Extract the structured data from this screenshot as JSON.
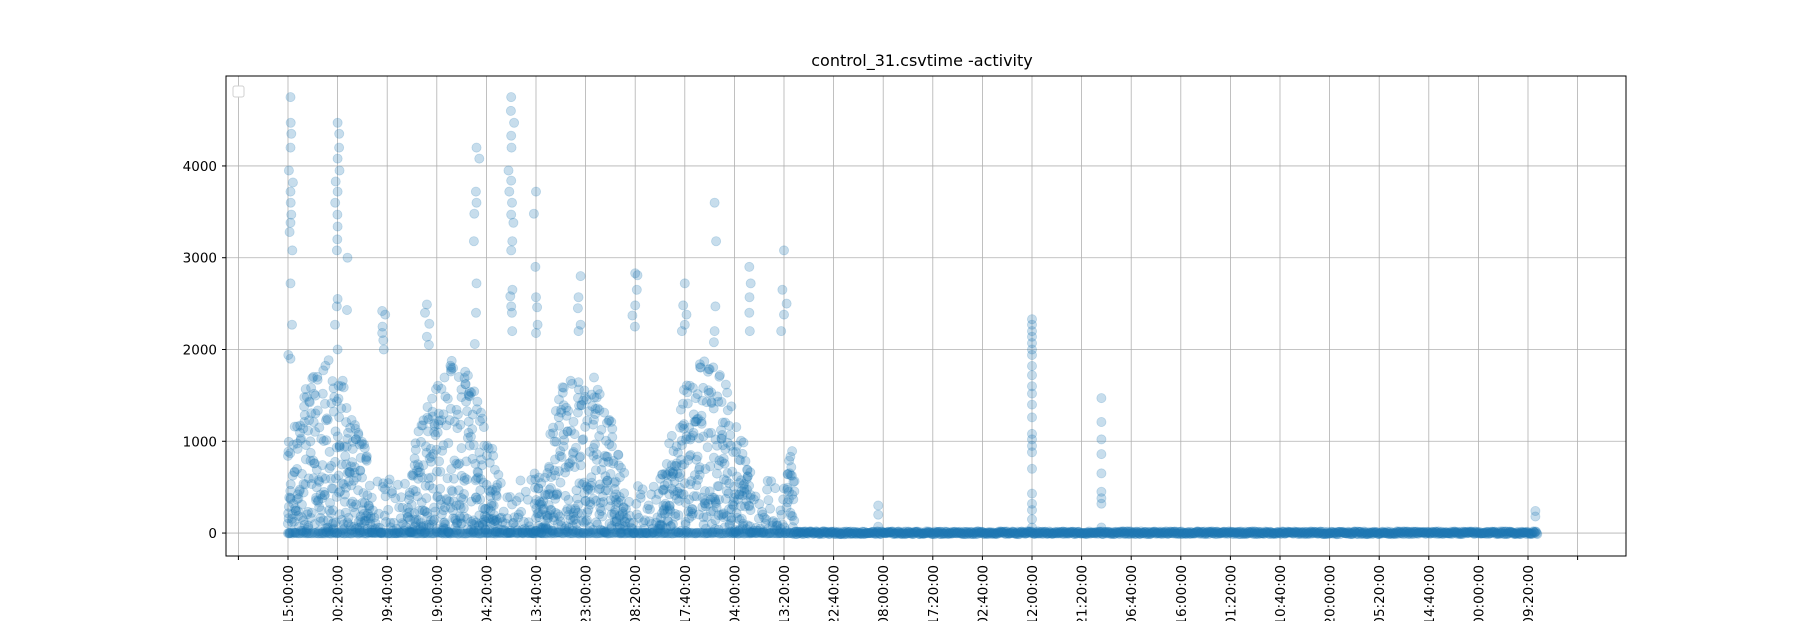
{
  "chart_data": {
    "type": "scatter",
    "title": "control_31.csvtime -activity",
    "xlabel": "",
    "ylabel": "",
    "grid": true,
    "legend": "top-left (empty)",
    "marker_color": "#1f77b4",
    "marker_alpha": 0.25,
    "y_ticks": [
      0,
      1000,
      2000,
      3000,
      4000
    ],
    "ylim": [
      -250,
      4980
    ],
    "x_ticks": [
      "15:00:00",
      "00:20:00",
      "09:40:00",
      "19:00:00",
      "04:20:00",
      "13:40:00",
      "23:00:00",
      "08:20:00",
      "17:40:00",
      "04:00:00",
      "13:20:00",
      "22:40:00",
      "08:00:00",
      "17:20:00",
      "02:40:00",
      "12:00:00",
      "21:20:00",
      "06:40:00",
      "16:00:00",
      "01:20:00",
      "10:40:00",
      "20:00:00",
      "05:20:00",
      "14:40:00",
      "00:00:00",
      "09:20:00"
    ],
    "x_tick_rotation": 90,
    "x_note": "x axis is time with ticks every 9h20m; activity data begins at tick 0 and ends just past tick 25",
    "series": [
      {
        "segments": [
          {
            "from_tick": 0.0,
            "to_tick": 10.2,
            "pattern": "dense daily bursts",
            "typical_max": 1900,
            "bursts": [
              {
                "at_tick": 0.05,
                "peaks": [
                  4750,
                  4470,
                  4350,
                  4200,
                  3950,
                  3820,
                  3720,
                  3600,
                  3470,
                  3380,
                  3280,
                  3080,
                  2720,
                  2270,
                  1940,
                  1900
                ]
              },
              {
                "at_tick": 1.0,
                "peaks": [
                  4470,
                  4350,
                  4200,
                  4080,
                  3950,
                  3830,
                  3720,
                  3600,
                  3470,
                  3340,
                  3200,
                  3080,
                  2550,
                  2470,
                  2270,
                  2000
                ]
              },
              {
                "at_tick": 1.2,
                "peaks": [
                  3000,
                  2430
                ]
              },
              {
                "at_tick": 1.9,
                "peaks": [
                  2420,
                  2380,
                  2250,
                  2180,
                  2100,
                  2000
                ]
              },
              {
                "at_tick": 2.8,
                "peaks": [
                  2490,
                  2400,
                  2280,
                  2140,
                  2050
                ]
              },
              {
                "at_tick": 3.8,
                "peaks": [
                  4200,
                  4080,
                  3720,
                  3600,
                  3480,
                  3180,
                  2720,
                  2400,
                  2060
                ]
              },
              {
                "at_tick": 4.5,
                "peaks": [
                  4750,
                  4600,
                  4470,
                  4330,
                  4200,
                  3950,
                  3840,
                  3720,
                  3600,
                  3470,
                  3380,
                  3180,
                  3080,
                  2650,
                  2580,
                  2470,
                  2400,
                  2200
                ]
              },
              {
                "at_tick": 5.0,
                "peaks": [
                  3720,
                  3480,
                  2900,
                  2570,
                  2460,
                  2270,
                  2180
                ]
              },
              {
                "at_tick": 5.9,
                "peaks": [
                  2800,
                  2570,
                  2450,
                  2270,
                  2200
                ]
              },
              {
                "at_tick": 7.0,
                "peaks": [
                  2830,
                  2810,
                  2650,
                  2480,
                  2370,
                  2250
                ]
              },
              {
                "at_tick": 8.0,
                "peaks": [
                  2720,
                  2480,
                  2380,
                  2270,
                  2200
                ]
              },
              {
                "at_tick": 8.6,
                "peaks": [
                  3600,
                  3180,
                  2470,
                  2200,
                  2080
                ]
              },
              {
                "at_tick": 9.3,
                "peaks": [
                  2900,
                  2720,
                  2570,
                  2400,
                  2200
                ]
              },
              {
                "at_tick": 10.0,
                "peaks": [
                  3080,
                  2650,
                  2500,
                  2380,
                  2200
                ]
              }
            ]
          },
          {
            "from_tick": 10.2,
            "to_tick": 25.2,
            "pattern": "flat near zero",
            "typical_max": 30,
            "spikes": [
              {
                "at_tick": 11.9,
                "values": [
                  300,
                  200,
                  70
                ]
              },
              {
                "at_tick": 15.0,
                "values": [
                  2330,
                  2270,
                  2200,
                  2140,
                  2070,
                  2000,
                  1940,
                  1820,
                  1720,
                  1600,
                  1520,
                  1400,
                  1260,
                  1080,
                  1020,
                  950,
                  880,
                  700,
                  430,
                  320,
                  250,
                  150,
                  60
                ]
              },
              {
                "at_tick": 16.4,
                "values": [
                  1470,
                  1210,
                  1020,
                  860,
                  650,
                  450,
                  380,
                  320,
                  60
                ]
              },
              {
                "at_tick": 25.15,
                "values": [
                  240,
                  180
                ]
              }
            ]
          }
        ]
      }
    ]
  }
}
